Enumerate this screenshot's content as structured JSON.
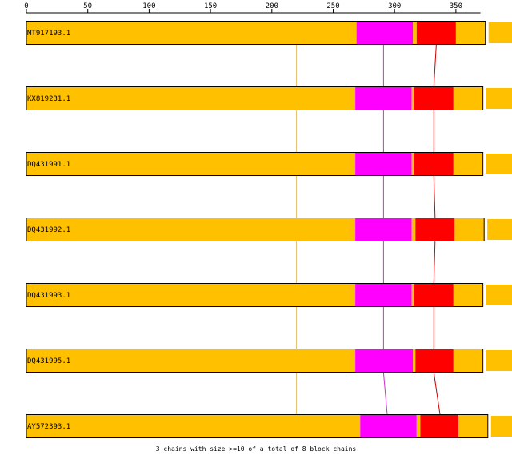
{
  "axis": {
    "min": 0,
    "max": 370,
    "ticks": [
      0,
      50,
      100,
      150,
      200,
      250,
      300,
      350
    ],
    "tick_labels": [
      "0",
      "50",
      "100",
      "150",
      "200",
      "250",
      "300",
      "350"
    ]
  },
  "colors": {
    "block_a": "#FFC000",
    "block_b": "#FF00FF",
    "block_c": "#FF0000",
    "block_a_link": "#E8C070",
    "block_b_link": "#CC33CC",
    "block_c_link": "#CC0000",
    "outline": "#000000"
  },
  "sequences": [
    {
      "label": "MT917193.1",
      "end": 374,
      "trail": true,
      "blocks": [
        [
          0,
          269,
          "block_a"
        ],
        [
          269,
          315,
          "block_b"
        ],
        [
          315,
          318,
          "block_a"
        ],
        [
          318,
          350,
          "block_c"
        ],
        [
          350,
          374,
          "block_a"
        ]
      ]
    },
    {
      "label": "KX819231.1",
      "end": 372,
      "trail": true,
      "blocks": [
        [
          0,
          268,
          "block_a"
        ],
        [
          268,
          314,
          "block_b"
        ],
        [
          314,
          316,
          "block_a"
        ],
        [
          316,
          348,
          "block_c"
        ],
        [
          348,
          372,
          "block_a"
        ]
      ]
    },
    {
      "label": "DQ431991.1",
      "end": 372,
      "trail": true,
      "blocks": [
        [
          0,
          268,
          "block_a"
        ],
        [
          268,
          314,
          "block_b"
        ],
        [
          314,
          316,
          "block_a"
        ],
        [
          316,
          348,
          "block_c"
        ],
        [
          348,
          372,
          "block_a"
        ]
      ]
    },
    {
      "label": "DQ431992.1",
      "end": 373,
      "trail": true,
      "blocks": [
        [
          0,
          268,
          "block_a"
        ],
        [
          268,
          314,
          "block_b"
        ],
        [
          314,
          317,
          "block_a"
        ],
        [
          317,
          349,
          "block_c"
        ],
        [
          349,
          373,
          "block_a"
        ]
      ]
    },
    {
      "label": "DQ431993.1",
      "end": 372,
      "trail": true,
      "blocks": [
        [
          0,
          268,
          "block_a"
        ],
        [
          268,
          314,
          "block_b"
        ],
        [
          314,
          316,
          "block_a"
        ],
        [
          316,
          348,
          "block_c"
        ],
        [
          348,
          372,
          "block_a"
        ]
      ]
    },
    {
      "label": "DQ431995.1",
      "end": 372,
      "trail": true,
      "blocks": [
        [
          0,
          268,
          "block_a"
        ],
        [
          268,
          315,
          "block_b"
        ],
        [
          315,
          317,
          "block_a"
        ],
        [
          317,
          348,
          "block_c"
        ],
        [
          348,
          372,
          "block_a"
        ]
      ]
    },
    {
      "label": "AY572393.1",
      "end": 376,
      "trail": true,
      "blocks": [
        [
          0,
          272,
          "block_a"
        ],
        [
          272,
          318,
          "block_b"
        ],
        [
          318,
          321,
          "block_a"
        ],
        [
          321,
          352,
          "block_c"
        ],
        [
          352,
          376,
          "block_a"
        ]
      ]
    }
  ],
  "links": [
    {
      "color": "block_a_link",
      "positions": [
        220,
        220,
        220,
        220,
        220,
        220,
        220
      ]
    },
    {
      "color": "block_b_link",
      "positions": [
        291,
        291,
        291,
        291,
        291,
        291,
        294
      ]
    },
    {
      "color": "block_c_link",
      "positions": [
        334,
        332,
        332,
        333,
        332,
        332,
        337
      ]
    }
  ],
  "footer": "3 chains with size >=10 of a total of 8 block chains"
}
